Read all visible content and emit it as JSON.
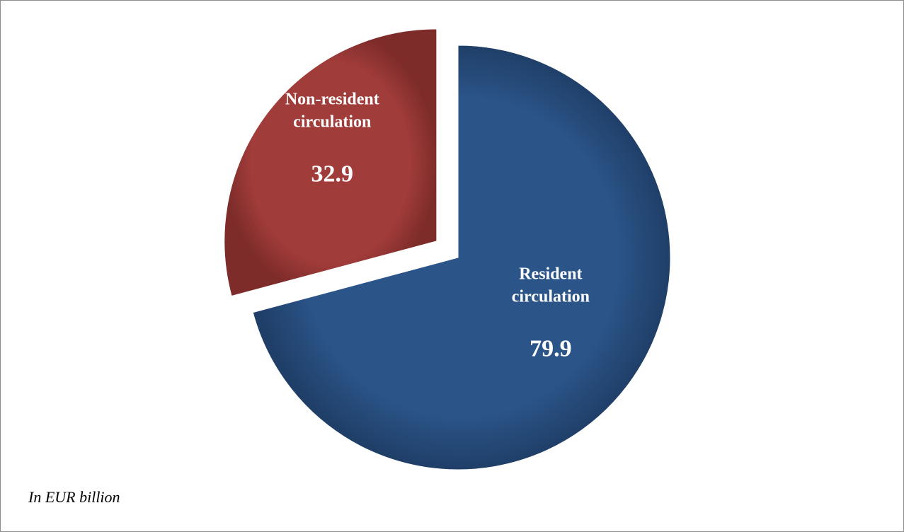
{
  "note": "In EUR billion",
  "chart_data": {
    "type": "pie",
    "title": "",
    "unit": "EUR billion",
    "slices": [
      {
        "label_lines": [
          "Resident",
          "circulation"
        ],
        "value": 79.9,
        "value_label": "79.9",
        "color": "#2a5286",
        "exploded": false
      },
      {
        "label_lines": [
          "Non-resident",
          "circulation"
        ],
        "value": 32.9,
        "value_label": "32.9",
        "color": "#9e3a38",
        "exploded": true
      }
    ],
    "start": "12 o'clock",
    "direction": "clockwise",
    "legend": "none"
  }
}
